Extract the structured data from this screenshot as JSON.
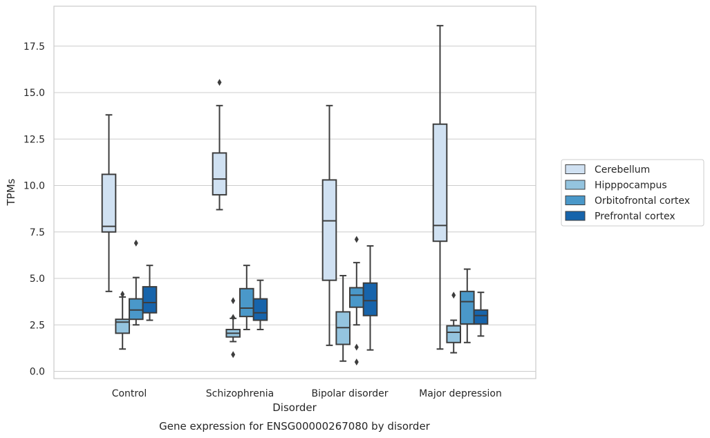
{
  "chart_data": {
    "type": "box",
    "title": "Gene expression for ENSG00000267080 by disorder",
    "xlabel": "Disorder",
    "ylabel": "TPMs",
    "ylim": [
      -0.4,
      19.7
    ],
    "yticks": [
      "0.0",
      "2.5",
      "5.0",
      "7.5",
      "10.0",
      "12.5",
      "15.0",
      "17.5"
    ],
    "grid": "horizontal",
    "legend_position": "right",
    "categories": [
      "Control",
      "Schizophrenia",
      "Bipolar disorder",
      "Major depression"
    ],
    "series": [
      {
        "name": "Cerebellum",
        "color": "#d0e1f2",
        "boxes": [
          {
            "whisker_low": 4.3,
            "q1": 7.5,
            "median": 7.8,
            "q3": 10.6,
            "whisker_high": 13.8,
            "outliers": []
          },
          {
            "whisker_low": 8.7,
            "q1": 9.5,
            "median": 10.35,
            "q3": 11.75,
            "whisker_high": 14.3,
            "outliers": [
              15.55
            ]
          },
          {
            "whisker_low": 1.4,
            "q1": 4.9,
            "median": 8.1,
            "q3": 10.3,
            "whisker_high": 14.3,
            "outliers": []
          },
          {
            "whisker_low": 1.2,
            "q1": 7.0,
            "median": 7.85,
            "q3": 13.3,
            "whisker_high": 18.6,
            "outliers": []
          }
        ]
      },
      {
        "name": "Hipppocampus",
        "color": "#94c4df",
        "boxes": [
          {
            "whisker_low": 1.2,
            "q1": 2.05,
            "median": 2.65,
            "q3": 2.8,
            "whisker_high": 4.0,
            "outliers": [
              4.15
            ]
          },
          {
            "whisker_low": 1.6,
            "q1": 1.85,
            "median": 2.05,
            "q3": 2.25,
            "whisker_high": 2.85,
            "outliers": [
              3.8,
              2.9,
              0.9
            ]
          },
          {
            "whisker_low": 0.55,
            "q1": 1.45,
            "median": 2.35,
            "q3": 3.2,
            "whisker_high": 5.15,
            "outliers": []
          },
          {
            "whisker_low": 1.0,
            "q1": 1.55,
            "median": 2.1,
            "q3": 2.45,
            "whisker_high": 2.75,
            "outliers": [
              4.1
            ]
          }
        ]
      },
      {
        "name": "Orbitofrontal cortex",
        "color": "#4a98c9",
        "boxes": [
          {
            "whisker_low": 2.5,
            "q1": 2.8,
            "median": 3.3,
            "q3": 3.9,
            "whisker_high": 5.05,
            "outliers": [
              6.9
            ]
          },
          {
            "whisker_low": 2.25,
            "q1": 2.95,
            "median": 3.4,
            "q3": 4.45,
            "whisker_high": 5.7,
            "outliers": []
          },
          {
            "whisker_low": 2.5,
            "q1": 3.45,
            "median": 4.1,
            "q3": 4.5,
            "whisker_high": 5.85,
            "outliers": [
              7.1,
              1.3,
              0.5
            ]
          },
          {
            "whisker_low": 1.55,
            "q1": 2.55,
            "median": 3.75,
            "q3": 4.3,
            "whisker_high": 5.5,
            "outliers": []
          }
        ]
      },
      {
        "name": "Prefrontal cortex",
        "color": "#1764ab",
        "boxes": [
          {
            "whisker_low": 2.75,
            "q1": 3.15,
            "median": 3.7,
            "q3": 4.55,
            "whisker_high": 5.7,
            "outliers": []
          },
          {
            "whisker_low": 2.25,
            "q1": 2.75,
            "median": 3.15,
            "q3": 3.9,
            "whisker_high": 4.9,
            "outliers": []
          },
          {
            "whisker_low": 1.15,
            "q1": 3.0,
            "median": 3.8,
            "q3": 4.75,
            "whisker_high": 6.75,
            "outliers": []
          },
          {
            "whisker_low": 1.9,
            "q1": 2.55,
            "median": 3.0,
            "q3": 3.3,
            "whisker_high": 4.25,
            "outliers": []
          }
        ]
      }
    ]
  }
}
